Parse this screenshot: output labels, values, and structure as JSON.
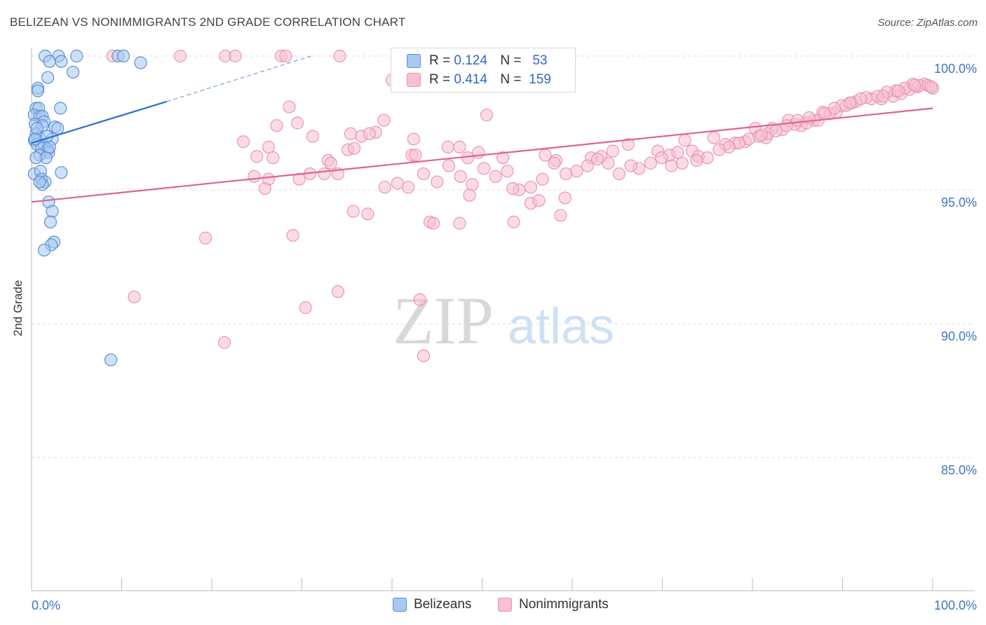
{
  "title": "BELIZEAN VS NONIMMIGRANTS 2ND GRADE CORRELATION CHART",
  "source": "Source: ZipAtlas.com",
  "watermark": {
    "zip": "ZIP",
    "atlas": "atlas"
  },
  "legend": {
    "r_label": "R =",
    "n_label": "N =",
    "series": [
      {
        "name": "Belizeans",
        "r": "0.124",
        "n": "53"
      },
      {
        "name": "Nonimmigrants",
        "r": "0.414",
        "n": "159"
      }
    ]
  },
  "colors": {
    "blue_fill": "#a8c8f0",
    "blue_stroke": "#5b8fd6",
    "blue_line": "#2a6fd0",
    "pink_fill": "#f8c0d2",
    "pink_stroke": "#e995b2",
    "pink_line": "#e0648c",
    "axis_label": "#3f73c8",
    "grid": "#dddddd"
  },
  "chart_data": {
    "type": "scatter",
    "title": "BELIZEAN VS NONIMMIGRANTS 2ND GRADE CORRELATION CHART",
    "xlabel": "",
    "ylabel": "2nd Grade",
    "xlim": [
      0,
      100
    ],
    "ylim": [
      80.3,
      101.0
    ],
    "x_tick_labels": [
      "0.0%",
      "100.0%"
    ],
    "y_ticks": [
      85.0,
      90.0,
      95.0,
      100.0
    ],
    "y_tick_labels": [
      "85.0%",
      "90.0%",
      "95.0%",
      "100.0%"
    ],
    "grid": true,
    "series": [
      {
        "name": "Belizeans",
        "r": 0.124,
        "n": 53,
        "trend": {
          "x": [
            0,
            15
          ],
          "y": [
            96.75,
            98.3
          ],
          "dashed_to": {
            "x": 31,
            "y": 100.0
          }
        },
        "points": [
          [
            1.5,
            100.0
          ],
          [
            3.0,
            100.0
          ],
          [
            5.0,
            100.0
          ],
          [
            9.6,
            100.0
          ],
          [
            10.2,
            100.0
          ],
          [
            2.0,
            99.8
          ],
          [
            3.3,
            99.8
          ],
          [
            12.1,
            99.75
          ],
          [
            4.6,
            99.4
          ],
          [
            1.8,
            99.2
          ],
          [
            0.7,
            98.8
          ],
          [
            0.7,
            98.7
          ],
          [
            0.5,
            98.05
          ],
          [
            0.8,
            98.05
          ],
          [
            3.2,
            98.05
          ],
          [
            0.3,
            97.8
          ],
          [
            0.9,
            97.75
          ],
          [
            1.2,
            97.75
          ],
          [
            1.4,
            97.55
          ],
          [
            0.4,
            97.45
          ],
          [
            1.2,
            97.4
          ],
          [
            2.6,
            97.35
          ],
          [
            0.5,
            97.1
          ],
          [
            0.9,
            96.95
          ],
          [
            0.3,
            96.85
          ],
          [
            2.3,
            96.9
          ],
          [
            0.6,
            96.7
          ],
          [
            1.4,
            96.65
          ],
          [
            1.1,
            96.55
          ],
          [
            1.8,
            96.5
          ],
          [
            1.9,
            96.4
          ],
          [
            0.9,
            96.3
          ],
          [
            1.6,
            96.2
          ],
          [
            0.5,
            96.2
          ],
          [
            0.3,
            95.6
          ],
          [
            1.0,
            95.7
          ],
          [
            3.3,
            95.65
          ],
          [
            1.1,
            95.4
          ],
          [
            1.5,
            95.3
          ],
          [
            1.2,
            95.2
          ],
          [
            1.9,
            94.55
          ],
          [
            2.3,
            94.2
          ],
          [
            2.1,
            93.8
          ],
          [
            2.5,
            93.05
          ],
          [
            2.2,
            92.95
          ],
          [
            1.4,
            92.75
          ],
          [
            8.8,
            88.65
          ],
          [
            0.6,
            97.3
          ],
          [
            2.0,
            96.6
          ],
          [
            0.9,
            95.3
          ],
          [
            0.4,
            96.9
          ],
          [
            1.7,
            97.0
          ],
          [
            2.9,
            97.3
          ]
        ]
      },
      {
        "name": "Nonimmigrants",
        "r": 0.414,
        "n": 159,
        "trend": {
          "x": [
            0,
            100
          ],
          "y": [
            94.55,
            98.05
          ]
        },
        "points": [
          [
            9.0,
            100.0
          ],
          [
            16.5,
            100.0
          ],
          [
            21.5,
            100.0
          ],
          [
            22.6,
            100.0
          ],
          [
            27.7,
            100.0
          ],
          [
            28.2,
            100.0
          ],
          [
            34.2,
            100.0
          ],
          [
            40.0,
            99.1
          ],
          [
            28.6,
            98.1
          ],
          [
            50.5,
            97.8
          ],
          [
            39.1,
            97.6
          ],
          [
            27.2,
            97.4
          ],
          [
            29.5,
            97.5
          ],
          [
            31.2,
            97.0
          ],
          [
            36.6,
            97.0
          ],
          [
            35.4,
            97.1
          ],
          [
            38.2,
            97.15
          ],
          [
            42.4,
            96.9
          ],
          [
            23.5,
            96.8
          ],
          [
            26.3,
            96.6
          ],
          [
            35.1,
            96.5
          ],
          [
            46.2,
            96.6
          ],
          [
            47.5,
            96.6
          ],
          [
            42.2,
            96.3
          ],
          [
            25.0,
            96.25
          ],
          [
            32.9,
            96.1
          ],
          [
            33.2,
            96.0
          ],
          [
            49.6,
            96.4
          ],
          [
            48.4,
            96.2
          ],
          [
            52.3,
            96.2
          ],
          [
            57.0,
            96.3
          ],
          [
            58.2,
            96.1
          ],
          [
            64.5,
            96.45
          ],
          [
            63.2,
            96.25
          ],
          [
            62.1,
            96.2
          ],
          [
            69.5,
            96.45
          ],
          [
            70.8,
            96.3
          ],
          [
            71.7,
            96.4
          ],
          [
            73.3,
            96.45
          ],
          [
            74.0,
            96.25
          ],
          [
            66.2,
            96.7
          ],
          [
            72.5,
            96.85
          ],
          [
            75.7,
            96.95
          ],
          [
            77.0,
            96.7
          ],
          [
            78.1,
            96.75
          ],
          [
            79.2,
            96.8
          ],
          [
            80.3,
            97.3
          ],
          [
            82.2,
            97.3
          ],
          [
            81.5,
            96.95
          ],
          [
            84.0,
            97.6
          ],
          [
            85.4,
            97.4
          ],
          [
            86.8,
            97.6
          ],
          [
            87.8,
            97.9
          ],
          [
            89.3,
            97.9
          ],
          [
            90.4,
            98.15
          ],
          [
            91.5,
            98.3
          ],
          [
            93.2,
            98.4
          ],
          [
            94.3,
            98.4
          ],
          [
            95.6,
            98.5
          ],
          [
            96.5,
            98.6
          ],
          [
            97.4,
            98.75
          ],
          [
            98.3,
            98.85
          ],
          [
            99.1,
            98.95
          ],
          [
            98.5,
            98.9
          ],
          [
            97.8,
            98.95
          ],
          [
            96.9,
            98.8
          ],
          [
            95.9,
            98.7
          ],
          [
            94.9,
            98.65
          ],
          [
            93.9,
            98.5
          ],
          [
            92.6,
            98.45
          ],
          [
            91.0,
            98.25
          ],
          [
            89.9,
            98.15
          ],
          [
            88.6,
            97.85
          ],
          [
            87.3,
            97.6
          ],
          [
            86.0,
            97.5
          ],
          [
            84.7,
            97.45
          ],
          [
            83.3,
            97.25
          ],
          [
            81.7,
            97.1
          ],
          [
            80.7,
            97.0
          ],
          [
            79.6,
            96.9
          ],
          [
            99.5,
            98.9
          ],
          [
            100.0,
            98.8
          ],
          [
            99.8,
            98.85
          ],
          [
            98.0,
            98.9
          ],
          [
            96.2,
            98.7
          ],
          [
            94.5,
            98.5
          ],
          [
            92.0,
            98.4
          ],
          [
            90.8,
            98.25
          ],
          [
            89.1,
            98.05
          ],
          [
            88.0,
            97.85
          ],
          [
            86.3,
            97.7
          ],
          [
            85.0,
            97.6
          ],
          [
            83.8,
            97.4
          ],
          [
            82.6,
            97.2
          ],
          [
            81.0,
            97.05
          ],
          [
            78.5,
            96.75
          ],
          [
            77.4,
            96.6
          ],
          [
            76.3,
            96.5
          ],
          [
            75.0,
            96.2
          ],
          [
            73.8,
            96.1
          ],
          [
            72.2,
            96.0
          ],
          [
            71.0,
            95.9
          ],
          [
            69.9,
            96.2
          ],
          [
            68.7,
            96.0
          ],
          [
            67.4,
            95.8
          ],
          [
            66.5,
            95.9
          ],
          [
            65.2,
            95.6
          ],
          [
            64.0,
            96.0
          ],
          [
            62.8,
            96.15
          ],
          [
            61.7,
            95.9
          ],
          [
            60.5,
            95.7
          ],
          [
            59.3,
            95.6
          ],
          [
            58.0,
            96.0
          ],
          [
            56.7,
            95.4
          ],
          [
            55.4,
            95.1
          ],
          [
            54.1,
            95.0
          ],
          [
            52.8,
            95.7
          ],
          [
            51.5,
            95.5
          ],
          [
            50.2,
            95.8
          ],
          [
            48.9,
            95.2
          ],
          [
            47.6,
            95.5
          ],
          [
            46.3,
            95.9
          ],
          [
            45.0,
            95.3
          ],
          [
            43.5,
            95.6
          ],
          [
            41.8,
            95.1
          ],
          [
            40.6,
            95.25
          ],
          [
            39.2,
            95.1
          ],
          [
            37.3,
            94.1
          ],
          [
            35.7,
            94.2
          ],
          [
            34.0,
            95.6
          ],
          [
            32.5,
            95.6
          ],
          [
            30.9,
            95.6
          ],
          [
            29.7,
            95.4
          ],
          [
            26.3,
            95.4
          ],
          [
            24.7,
            95.5
          ],
          [
            25.9,
            95.05
          ],
          [
            44.2,
            93.8
          ],
          [
            47.5,
            93.75
          ],
          [
            44.6,
            93.75
          ],
          [
            48.6,
            94.8
          ],
          [
            53.4,
            95.05
          ],
          [
            53.5,
            93.8
          ],
          [
            55.4,
            94.5
          ],
          [
            56.3,
            94.6
          ],
          [
            58.7,
            94.05
          ],
          [
            59.2,
            94.7
          ],
          [
            26.8,
            96.2
          ],
          [
            35.8,
            96.55
          ],
          [
            37.5,
            97.1
          ],
          [
            42.6,
            96.3
          ],
          [
            19.3,
            93.2
          ],
          [
            29.0,
            93.3
          ],
          [
            11.4,
            91.0
          ],
          [
            34.0,
            91.2
          ],
          [
            30.4,
            90.6
          ],
          [
            43.1,
            90.9
          ],
          [
            21.4,
            89.3
          ],
          [
            43.5,
            88.8
          ]
        ]
      }
    ]
  }
}
